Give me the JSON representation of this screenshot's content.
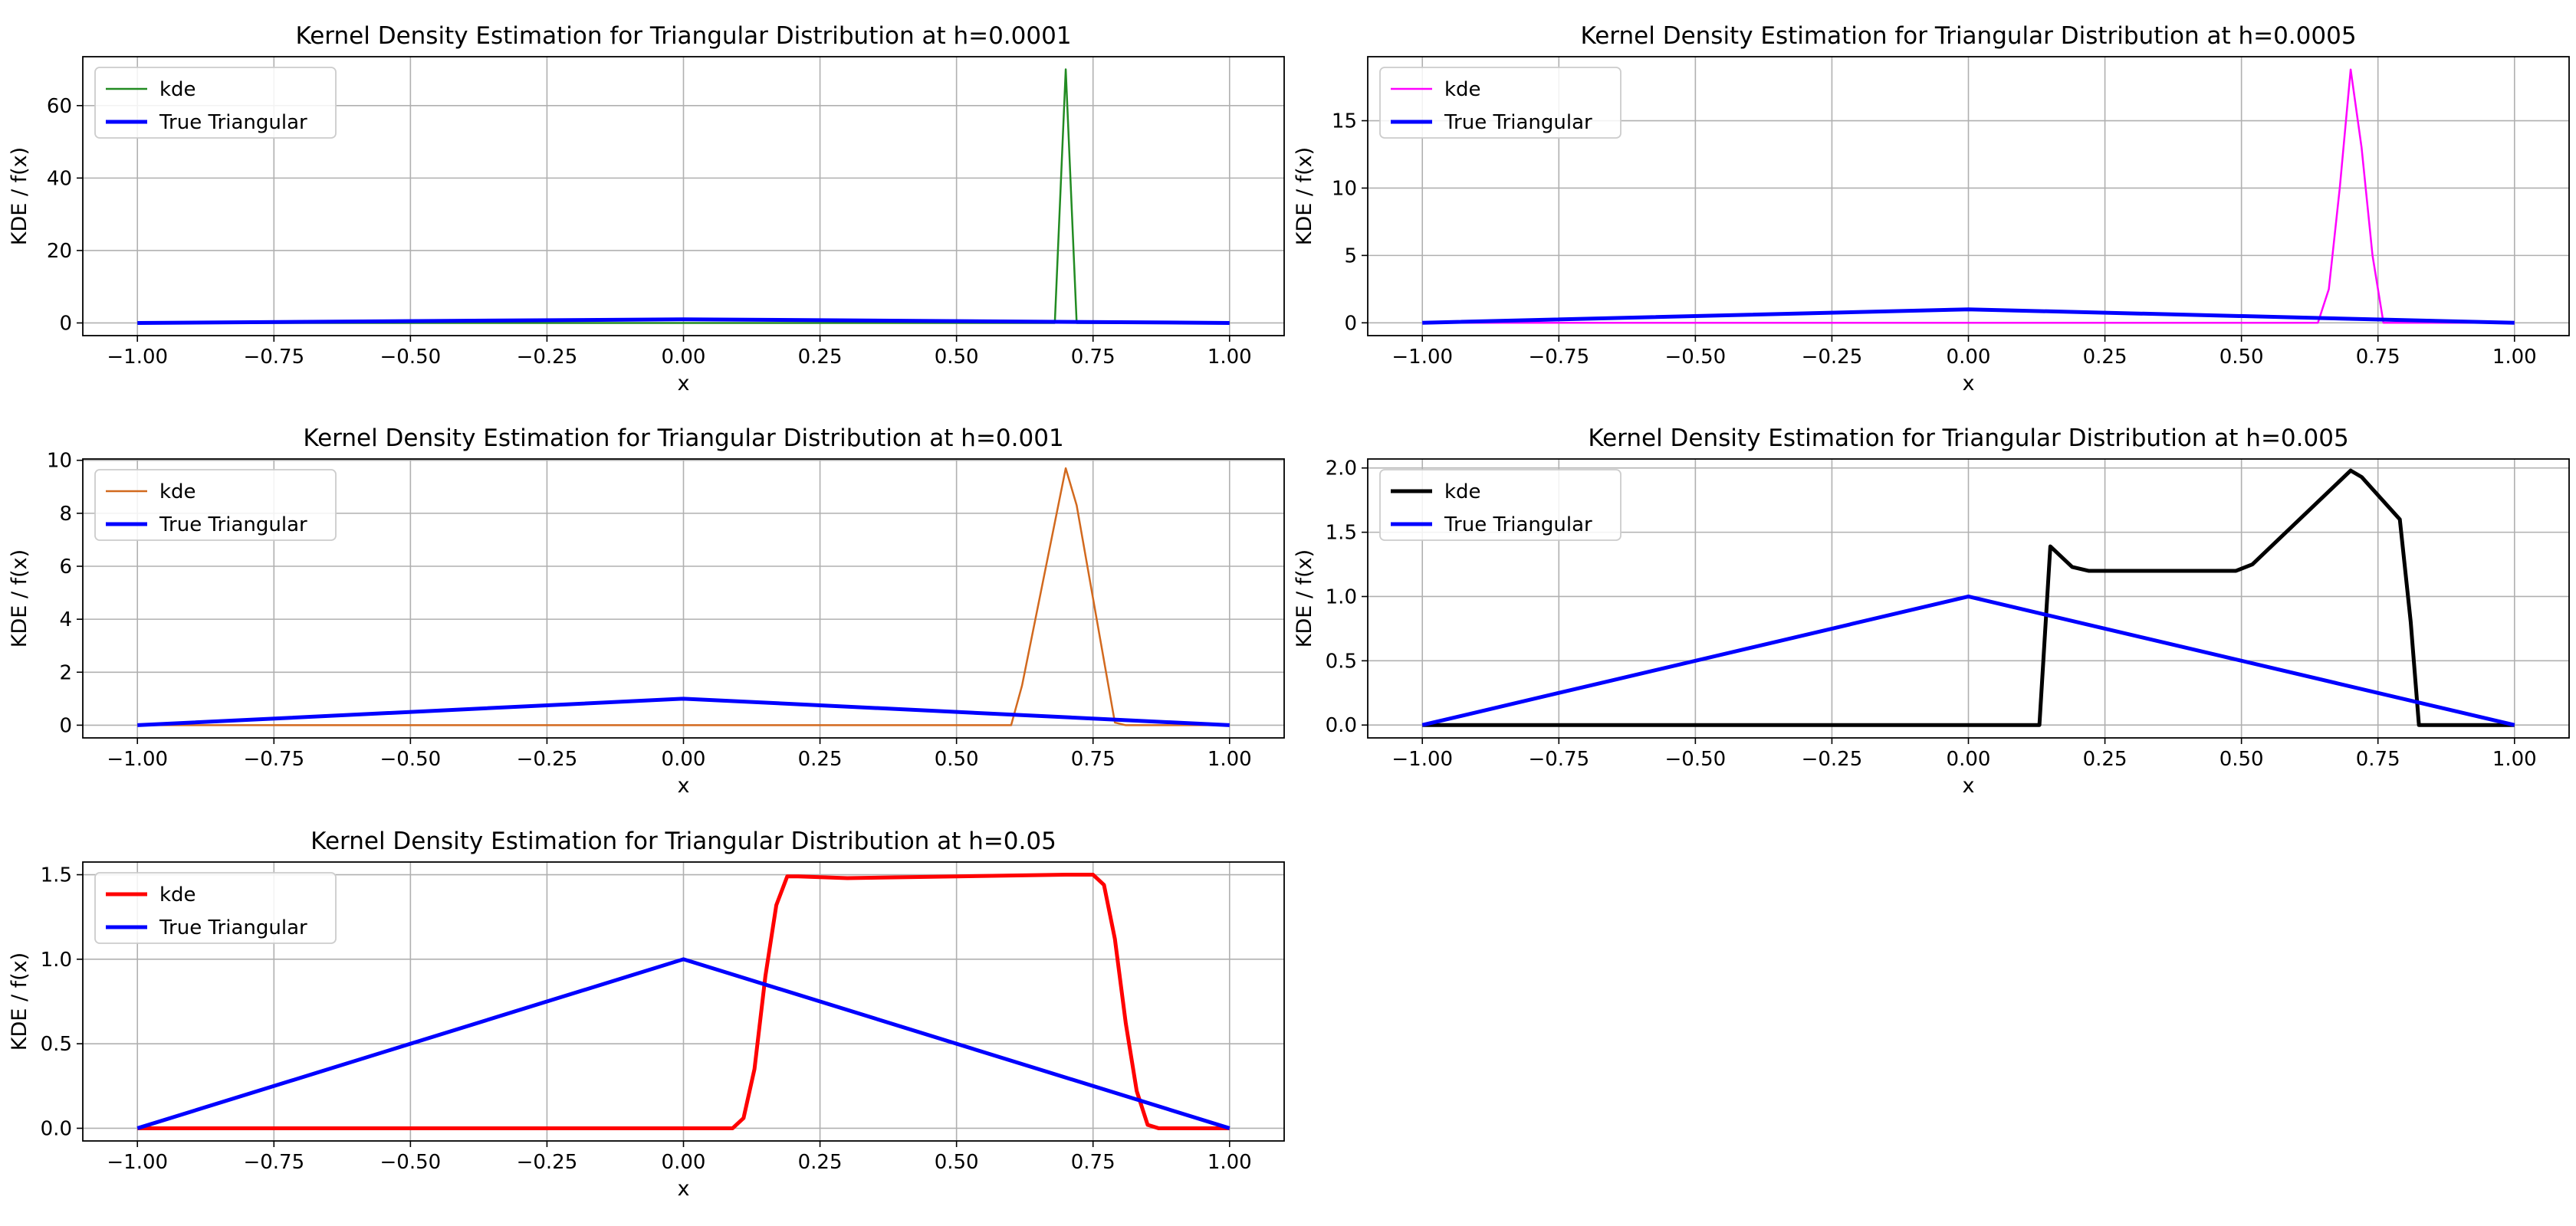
{
  "chart_data": [
    {
      "type": "line",
      "title": "Kernel Density Estimation for Triangular Distribution at h=0.0001",
      "xlabel": "x",
      "ylabel": "KDE / f(x)",
      "xlim": [
        -1.1,
        1.1
      ],
      "ylim": [
        -3.5,
        73.5
      ],
      "xticks": [
        -1.0,
        -0.75,
        -0.5,
        -0.25,
        0.0,
        0.25,
        0.5,
        0.75,
        1.0
      ],
      "xtick_labels": [
        "−1.00",
        "−0.75",
        "−0.50",
        "−0.25",
        "0.00",
        "0.25",
        "0.50",
        "0.75",
        "1.00"
      ],
      "yticks": [
        0,
        20,
        40,
        60
      ],
      "ytick_labels": [
        "0",
        "20",
        "40",
        "60"
      ],
      "grid": true,
      "legend_position": "upper-left",
      "series": [
        {
          "name": "kde",
          "color": "#228B22",
          "width": 2.5,
          "x": [
            -1.0,
            0.68,
            0.7,
            0.72,
            1.0
          ],
          "y": [
            0,
            0,
            70,
            0,
            0
          ]
        },
        {
          "name": "True Triangular",
          "color": "#0000FF",
          "width": 5,
          "x": [
            -1.0,
            0.0,
            1.0
          ],
          "y": [
            0,
            1,
            0
          ]
        }
      ]
    },
    {
      "type": "line",
      "title": "Kernel Density Estimation for Triangular Distribution at h=0.0005",
      "xlabel": "x",
      "ylabel": "KDE / f(x)",
      "xlim": [
        -1.1,
        1.1
      ],
      "ylim": [
        -0.95,
        19.75
      ],
      "xticks": [
        -1.0,
        -0.75,
        -0.5,
        -0.25,
        0.0,
        0.25,
        0.5,
        0.75,
        1.0
      ],
      "xtick_labels": [
        "−1.00",
        "−0.75",
        "−0.50",
        "−0.25",
        "0.00",
        "0.25",
        "0.50",
        "0.75",
        "1.00"
      ],
      "yticks": [
        0,
        5,
        10,
        15
      ],
      "ytick_labels": [
        "0",
        "5",
        "10",
        "15"
      ],
      "grid": true,
      "legend_position": "upper-left",
      "series": [
        {
          "name": "kde",
          "color": "#FF00FF",
          "width": 2.5,
          "x": [
            -1.0,
            0.64,
            0.66,
            0.68,
            0.7,
            0.72,
            0.74,
            0.76,
            1.0
          ],
          "y": [
            0,
            0,
            2.5,
            10,
            18.8,
            13,
            5,
            0,
            0
          ]
        },
        {
          "name": "True Triangular",
          "color": "#0000FF",
          "width": 5,
          "x": [
            -1.0,
            0.0,
            1.0
          ],
          "y": [
            0,
            1,
            0
          ]
        }
      ]
    },
    {
      "type": "line",
      "title": "Kernel Density Estimation for Triangular Distribution at h=0.001",
      "xlabel": "x",
      "ylabel": "KDE / f(x)",
      "xlim": [
        -1.1,
        1.1
      ],
      "ylim": [
        -0.48,
        10.05
      ],
      "xticks": [
        -1.0,
        -0.75,
        -0.5,
        -0.25,
        0.0,
        0.25,
        0.5,
        0.75,
        1.0
      ],
      "xtick_labels": [
        "−1.00",
        "−0.75",
        "−0.50",
        "−0.25",
        "0.00",
        "0.25",
        "0.50",
        "0.75",
        "1.00"
      ],
      "yticks": [
        0,
        2,
        4,
        6,
        8,
        10
      ],
      "ytick_labels": [
        "0",
        "2",
        "4",
        "6",
        "8",
        "10"
      ],
      "grid": true,
      "legend_position": "upper-left",
      "series": [
        {
          "name": "kde",
          "color": "#D2691E",
          "width": 2.5,
          "x": [
            -1.0,
            0.6,
            0.62,
            0.7,
            0.72,
            0.79,
            0.81,
            1.0
          ],
          "y": [
            0,
            0,
            1.5,
            9.7,
            8.3,
            0.1,
            0,
            0
          ]
        },
        {
          "name": "True Triangular",
          "color": "#0000FF",
          "width": 5,
          "x": [
            -1.0,
            0.0,
            1.0
          ],
          "y": [
            0,
            1,
            0
          ]
        }
      ]
    },
    {
      "type": "line",
      "title": "Kernel Density Estimation for Triangular Distribution at h=0.005",
      "xlabel": "x",
      "ylabel": "KDE / f(x)",
      "xlim": [
        -1.1,
        1.1
      ],
      "ylim": [
        -0.1,
        2.07
      ],
      "xticks": [
        -1.0,
        -0.75,
        -0.5,
        -0.25,
        0.0,
        0.25,
        0.5,
        0.75,
        1.0
      ],
      "xtick_labels": [
        "−1.00",
        "−0.75",
        "−0.50",
        "−0.25",
        "0.00",
        "0.25",
        "0.50",
        "0.75",
        "1.00"
      ],
      "yticks": [
        0.0,
        0.5,
        1.0,
        1.5,
        2.0
      ],
      "ytick_labels": [
        "0.0",
        "0.5",
        "1.0",
        "1.5",
        "2.0"
      ],
      "grid": true,
      "legend_position": "upper-left",
      "series": [
        {
          "name": "kde",
          "color": "#000000",
          "width": 5,
          "x": [
            -1.0,
            0.13,
            0.15,
            0.19,
            0.22,
            0.49,
            0.52,
            0.7,
            0.72,
            0.79,
            0.81,
            0.825,
            1.0
          ],
          "y": [
            0,
            0,
            1.39,
            1.23,
            1.2,
            1.2,
            1.25,
            1.98,
            1.93,
            1.6,
            0.8,
            0,
            0
          ]
        },
        {
          "name": "True Triangular",
          "color": "#0000FF",
          "width": 5,
          "x": [
            -1.0,
            0.0,
            1.0
          ],
          "y": [
            0,
            1,
            0
          ]
        }
      ]
    },
    {
      "type": "line",
      "title": "Kernel Density Estimation for Triangular Distribution at h=0.05",
      "xlabel": "x",
      "ylabel": "KDE / f(x)",
      "xlim": [
        -1.1,
        1.1
      ],
      "ylim": [
        -0.075,
        1.575
      ],
      "xticks": [
        -1.0,
        -0.75,
        -0.5,
        -0.25,
        0.0,
        0.25,
        0.5,
        0.75,
        1.0
      ],
      "xtick_labels": [
        "−1.00",
        "−0.75",
        "−0.50",
        "−0.25",
        "0.00",
        "0.25",
        "0.50",
        "0.75",
        "1.00"
      ],
      "yticks": [
        0.0,
        0.5,
        1.0,
        1.5
      ],
      "ytick_labels": [
        "0.0",
        "0.5",
        "1.0",
        "1.5"
      ],
      "grid": true,
      "legend_position": "upper-left",
      "series": [
        {
          "name": "kde",
          "color": "#FF0000",
          "width": 5,
          "x": [
            -1.0,
            0.09,
            0.11,
            0.13,
            0.15,
            0.17,
            0.19,
            0.21,
            0.3,
            0.5,
            0.7,
            0.75,
            0.77,
            0.79,
            0.81,
            0.83,
            0.85,
            0.87,
            1.0
          ],
          "y": [
            0,
            0,
            0.06,
            0.35,
            0.9,
            1.32,
            1.49,
            1.49,
            1.48,
            1.49,
            1.5,
            1.5,
            1.44,
            1.12,
            0.62,
            0.22,
            0.02,
            0,
            0
          ]
        },
        {
          "name": "True Triangular",
          "color": "#0000FF",
          "width": 5,
          "x": [
            -1.0,
            0.0,
            1.0
          ],
          "y": [
            0,
            1,
            0
          ]
        }
      ]
    }
  ]
}
